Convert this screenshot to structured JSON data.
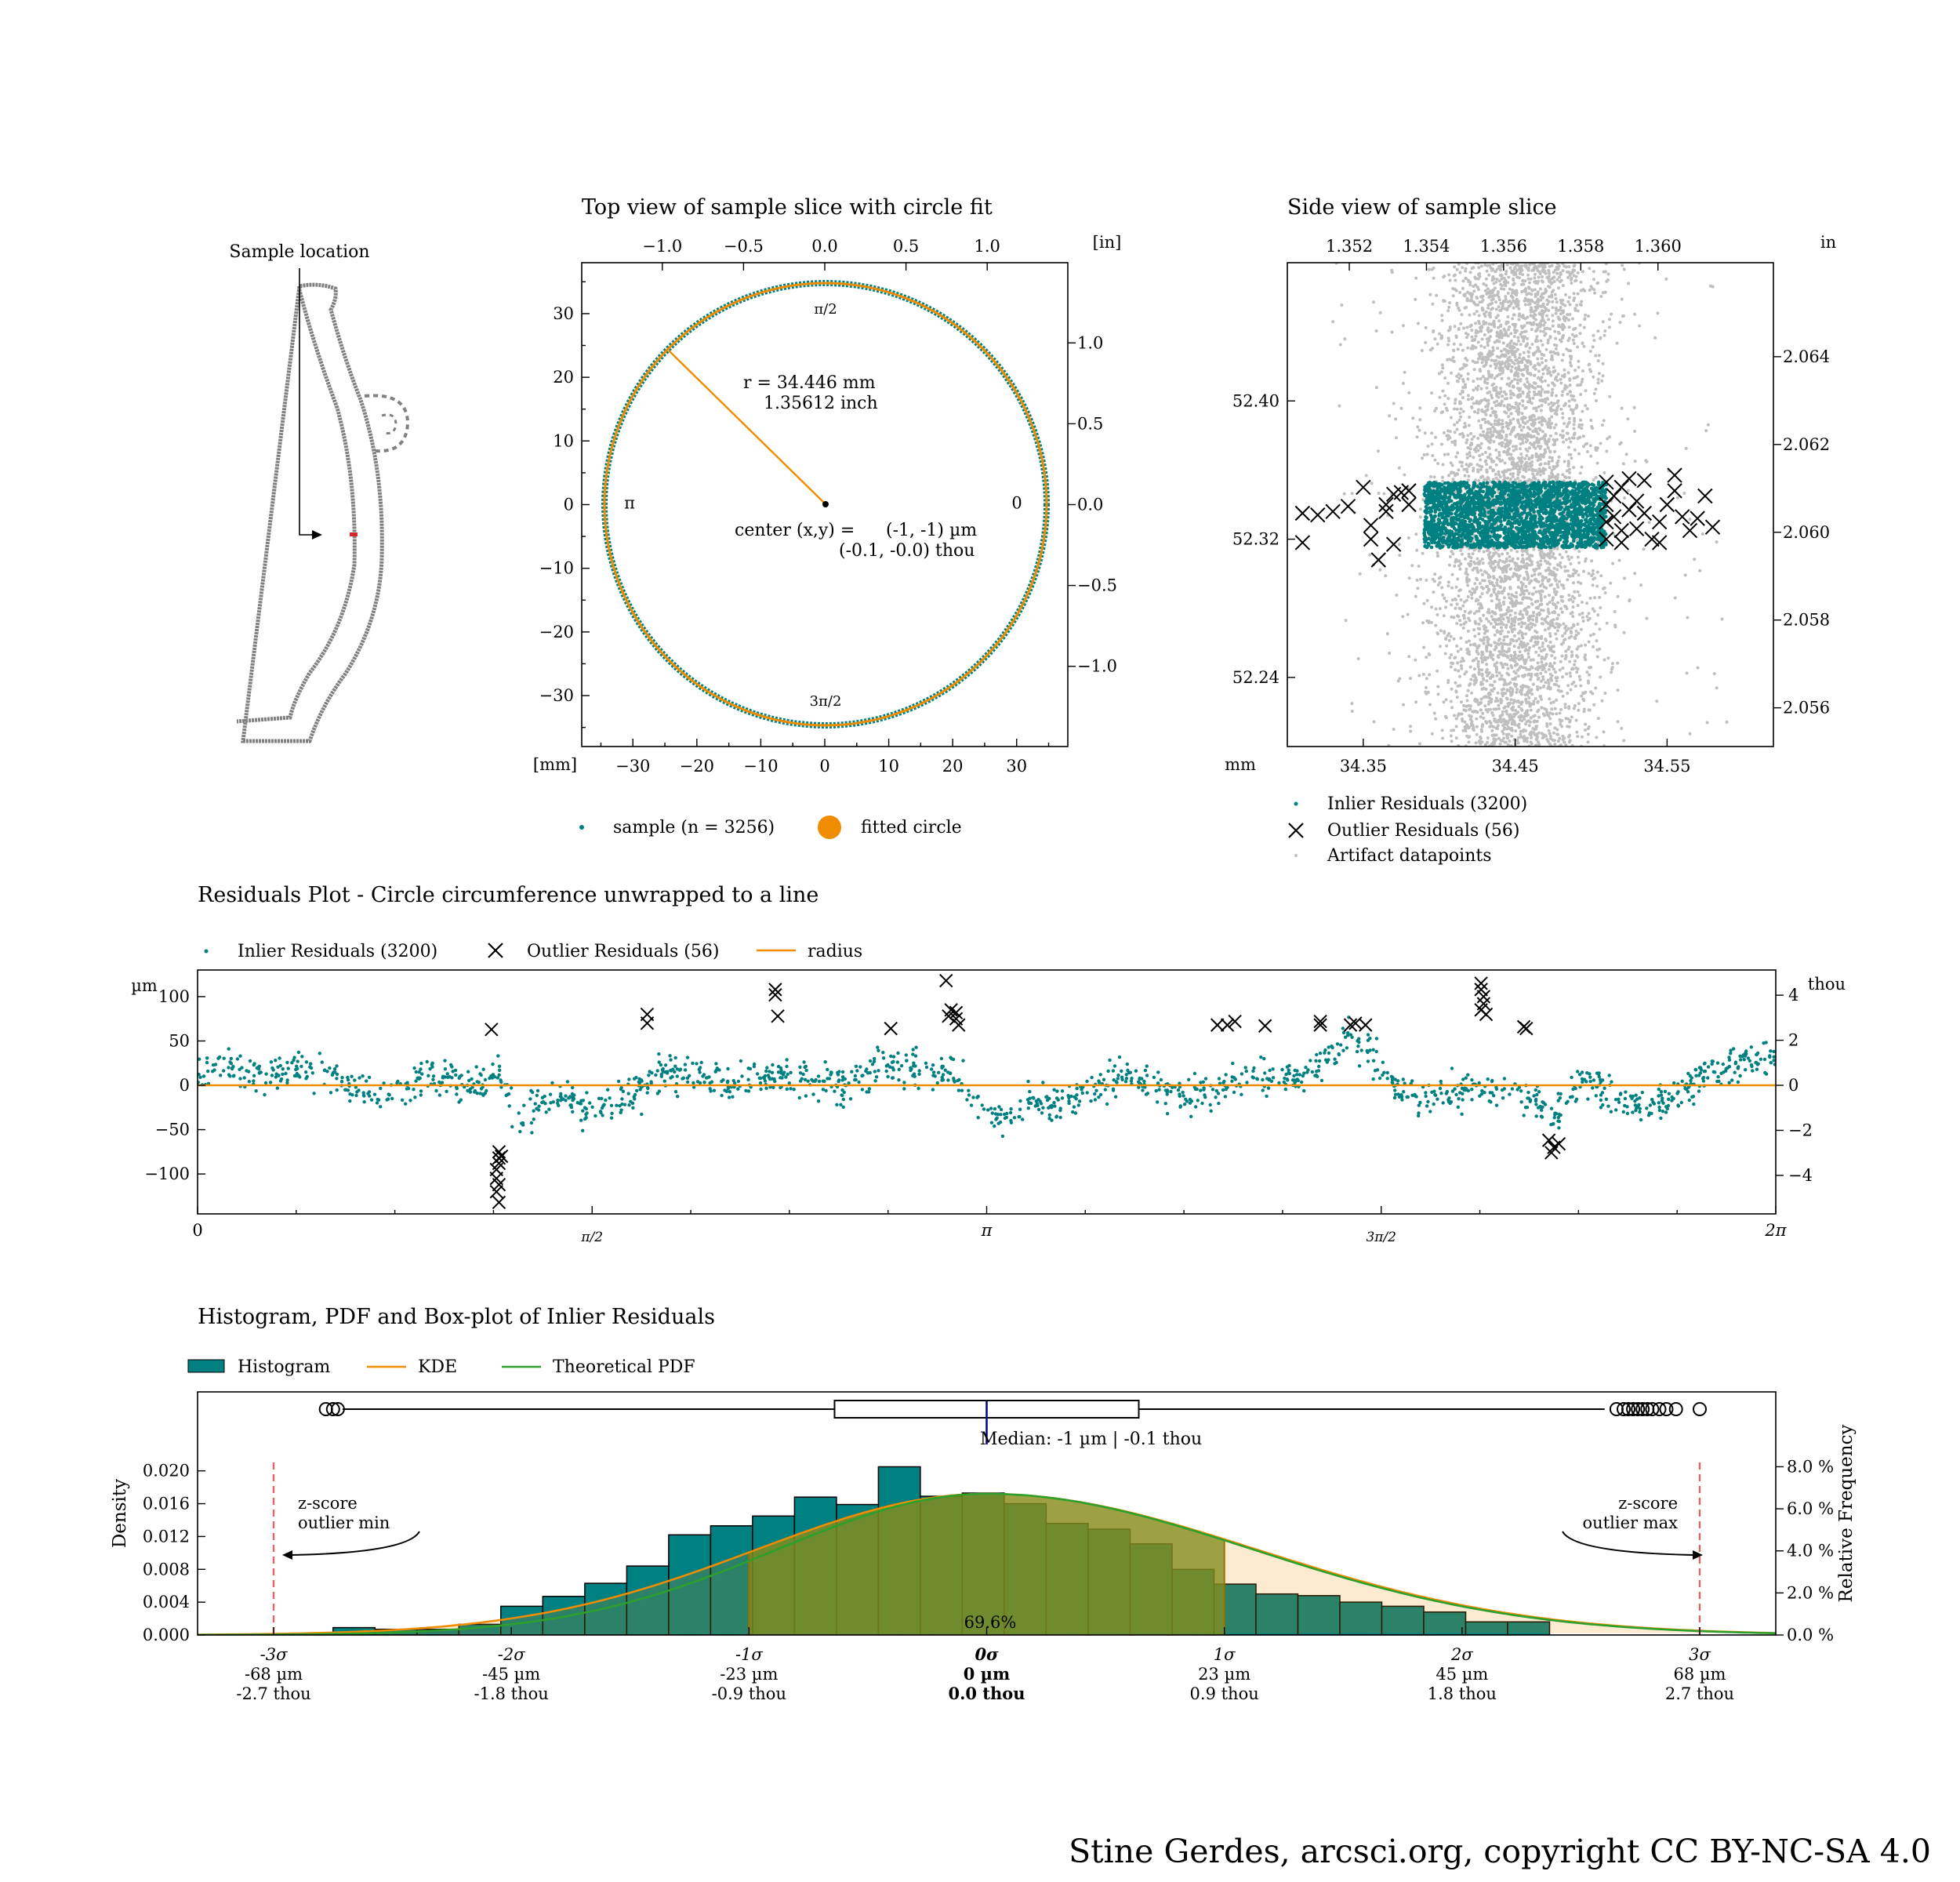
{
  "credit": "Stine Gerdes, arcsci.org, copyright CC BY-NC-SA 4.0",
  "colors": {
    "teal": "#008080",
    "orange": "#f08c00",
    "green": "#2ca02c",
    "olive": "#6b8e23",
    "grey": "#bfbfbf",
    "red": "#e06666",
    "navy": "#000080"
  },
  "chart_data": [
    {
      "id": "sample-location",
      "type": "diagram",
      "annotation": "Sample location"
    },
    {
      "id": "top-view",
      "type": "scatter",
      "title": "Top view of sample slice with circle fit",
      "x_unit": "[mm]",
      "x2_unit": "[in]",
      "xlim": [
        -38,
        38
      ],
      "ylim": [
        -38,
        38
      ],
      "x_ticks": [
        "−30",
        "−20",
        "−10",
        "0",
        "10",
        "20",
        "30"
      ],
      "x_tick_values": [
        -30,
        -20,
        -10,
        0,
        10,
        20,
        30
      ],
      "y_ticks": [
        "30",
        "20",
        "10",
        "0",
        "−10",
        "−20",
        "−30"
      ],
      "y_tick_values": [
        30,
        20,
        10,
        0,
        -10,
        -20,
        -30
      ],
      "x2_ticks": [
        "−1.0",
        "−0.5",
        "0.0",
        "0.5",
        "1.0"
      ],
      "x2_tick_values": [
        -1.0,
        -0.5,
        0.0,
        0.5,
        1.0
      ],
      "y2_ticks": [
        "1.0",
        "0.5",
        "0.0",
        "−0.5",
        "−1.0"
      ],
      "y2_tick_values": [
        1.0,
        0.5,
        0.0,
        -0.5,
        -1.0
      ],
      "radius_mm": 34.446,
      "radius_label": "r = 34.446 mm",
      "radius_inch_label": "1.35612 inch",
      "center_label": "center (x,y) =",
      "center_um": "(-1, -1) µm",
      "center_thou": "(-0.1, -0.0) thou",
      "angle_labels": {
        "top": "π/2",
        "left": "π",
        "right": "0",
        "bottom": "3π/2"
      },
      "legend": [
        {
          "label": "sample (n = 3256)"
        },
        {
          "label": "fitted circle"
        }
      ]
    },
    {
      "id": "side-view",
      "type": "scatter",
      "title": "Side view of sample slice",
      "x_unit": "mm",
      "x2_unit": "in",
      "xlim": [
        34.3,
        34.62
      ],
      "ylim": [
        52.2,
        52.48
      ],
      "x_ticks": [
        "34.35",
        "34.45",
        "34.55"
      ],
      "x_tick_values": [
        34.35,
        34.45,
        34.55
      ],
      "y_ticks": [
        "52.40",
        "52.32",
        "52.24"
      ],
      "y_tick_values": [
        52.4,
        52.32,
        52.24
      ],
      "x2_ticks": [
        "1.352",
        "1.354",
        "1.356",
        "1.358",
        "1.360"
      ],
      "x2_tick_values": [
        1.352,
        1.354,
        1.356,
        1.358,
        1.36
      ],
      "y2_ticks": [
        "2.064",
        "2.062",
        "2.060",
        "2.058",
        "2.056"
      ],
      "y2_tick_values": [
        2.064,
        2.062,
        2.06,
        2.058,
        2.056
      ],
      "artifact_band": [
        34.425,
        34.475
      ],
      "inlier_band_y": [
        52.315,
        52.353
      ],
      "legend": [
        {
          "label": "Inlier Residuals (3200)"
        },
        {
          "label": "Outlier Residuals (56)"
        },
        {
          "label": "Artifact datapoints"
        }
      ]
    },
    {
      "id": "residuals",
      "type": "scatter",
      "title": "Residuals Plot - Circle circumference unwrapped to a line",
      "ylabel": "µm",
      "y2label": "thou",
      "xlim": [
        0,
        6.2832
      ],
      "ylim": [
        -145,
        130
      ],
      "x_ticks": [
        "0",
        "π/2",
        "π",
        "3π/2",
        "2π"
      ],
      "x_tick_values": [
        0,
        1.5708,
        3.1416,
        4.7124,
        6.2832
      ],
      "y_ticks": [
        "100",
        "50",
        "0",
        "−50",
        "−100"
      ],
      "y_tick_values": [
        100,
        50,
        0,
        -50,
        -100
      ],
      "y2_ticks": [
        "4",
        "2",
        "0",
        "−2",
        "−4"
      ],
      "y2_tick_values": [
        4,
        2,
        0,
        -2,
        -4
      ],
      "legend": [
        {
          "label": "Inlier Residuals (3200)"
        },
        {
          "label": "Outlier Residuals (56)"
        },
        {
          "label": "radius"
        }
      ],
      "outliers": [
        [
          1.17,
          63
        ],
        [
          1.2,
          -75
        ],
        [
          1.2,
          -82
        ],
        [
          1.2,
          -88
        ],
        [
          1.19,
          -95
        ],
        [
          1.19,
          -105
        ],
        [
          1.2,
          -112
        ],
        [
          1.19,
          -120
        ],
        [
          1.2,
          -132
        ],
        [
          1.21,
          -80
        ],
        [
          1.79,
          80
        ],
        [
          1.79,
          70
        ],
        [
          2.3,
          108
        ],
        [
          2.3,
          102
        ],
        [
          2.31,
          78
        ],
        [
          2.76,
          64
        ],
        [
          2.98,
          118
        ],
        [
          2.99,
          78
        ],
        [
          3.0,
          85
        ],
        [
          3.02,
          82
        ],
        [
          3.02,
          75
        ],
        [
          3.03,
          68
        ],
        [
          4.06,
          68
        ],
        [
          4.1,
          68
        ],
        [
          4.13,
          72
        ],
        [
          4.25,
          67
        ],
        [
          4.47,
          72
        ],
        [
          4.47,
          68
        ],
        [
          4.59,
          68
        ],
        [
          4.61,
          70
        ],
        [
          4.65,
          68
        ],
        [
          5.11,
          115
        ],
        [
          5.11,
          108
        ],
        [
          5.12,
          100
        ],
        [
          5.12,
          92
        ],
        [
          5.11,
          85
        ],
        [
          5.13,
          80
        ],
        [
          5.28,
          66
        ],
        [
          5.29,
          64
        ],
        [
          5.38,
          -62
        ],
        [
          5.4,
          -70
        ],
        [
          5.42,
          -66
        ],
        [
          5.39,
          -76
        ]
      ]
    },
    {
      "id": "histogram",
      "type": "bar",
      "title": "Histogram, PDF and Box-plot of Inlier Residuals",
      "ylabel": "Density",
      "y2label": "Relative Frequency",
      "xlim": [
        -3.32,
        3.32
      ],
      "ylim": [
        0,
        0.0215
      ],
      "y_ticks": [
        "0.020",
        "0.016",
        "0.012",
        "0.008",
        "0.004",
        "0.000"
      ],
      "y_tick_values": [
        0.02,
        0.016,
        0.012,
        0.008,
        0.004,
        0.0
      ],
      "y2_ticks": [
        "8.0 %",
        "6.0 %",
        "4.0 %",
        "2.0 %",
        "0.0 %"
      ],
      "y2_tick_values": [
        8.0,
        6.0,
        4.0,
        2.0,
        0.0
      ],
      "x_tick_positions": [
        -3,
        -2,
        -1,
        0,
        1,
        2,
        3
      ],
      "x_ticks_sigma": [
        "-3σ",
        "-2σ",
        "-1σ",
        "0σ",
        "1σ",
        "2σ",
        "3σ"
      ],
      "x_ticks_um": [
        "-68 µm",
        "-45 µm",
        "-23 µm",
        "0 µm",
        "23 µm",
        "45 µm",
        "68 µm"
      ],
      "x_ticks_thou": [
        "-2.7 thou",
        "-1.8 thou",
        "-0.9 thou",
        "0.0 thou",
        "0.9 thou",
        "1.8 thou",
        "2.7 thou"
      ],
      "bin_start": -2.75,
      "bin_width": 0.1765,
      "bars": [
        0.0009,
        0.0007,
        0.0007,
        0.0013,
        0.0035,
        0.0047,
        0.0063,
        0.0084,
        0.0122,
        0.0133,
        0.0145,
        0.0168,
        0.0159,
        0.0205,
        0.0169,
        0.0173,
        0.016,
        0.0136,
        0.0129,
        0.0111,
        0.008,
        0.0062,
        0.005,
        0.0048,
        0.004,
        0.0035,
        0.0028,
        0.0016,
        0.0016
      ],
      "shaded_range": [
        -1,
        1
      ],
      "shaded_label": "69.6%",
      "kde_sigma": 1.05,
      "kde_peak": 0.0172,
      "pdf_peak": 0.0172,
      "z_min": -3,
      "z_max": 3,
      "z_min_label": [
        "z-score",
        "outlier min"
      ],
      "z_max_label": [
        "z-score",
        "outlier max"
      ],
      "box": {
        "q1": -0.64,
        "q3": 0.64,
        "median": 0.0,
        "whisker_low": -2.71,
        "whisker_high": 2.6,
        "fliers": [
          -2.78,
          -2.75,
          -2.73,
          2.65,
          2.68,
          2.7,
          2.72,
          2.74,
          2.76,
          2.78,
          2.8,
          2.83,
          2.86,
          2.9,
          3.0
        ],
        "median_label": "Median: -1 µm | -0.1 thou"
      },
      "legend": [
        {
          "label": "Histogram"
        },
        {
          "label": "KDE"
        },
        {
          "label": "Theoretical PDF"
        }
      ]
    }
  ]
}
